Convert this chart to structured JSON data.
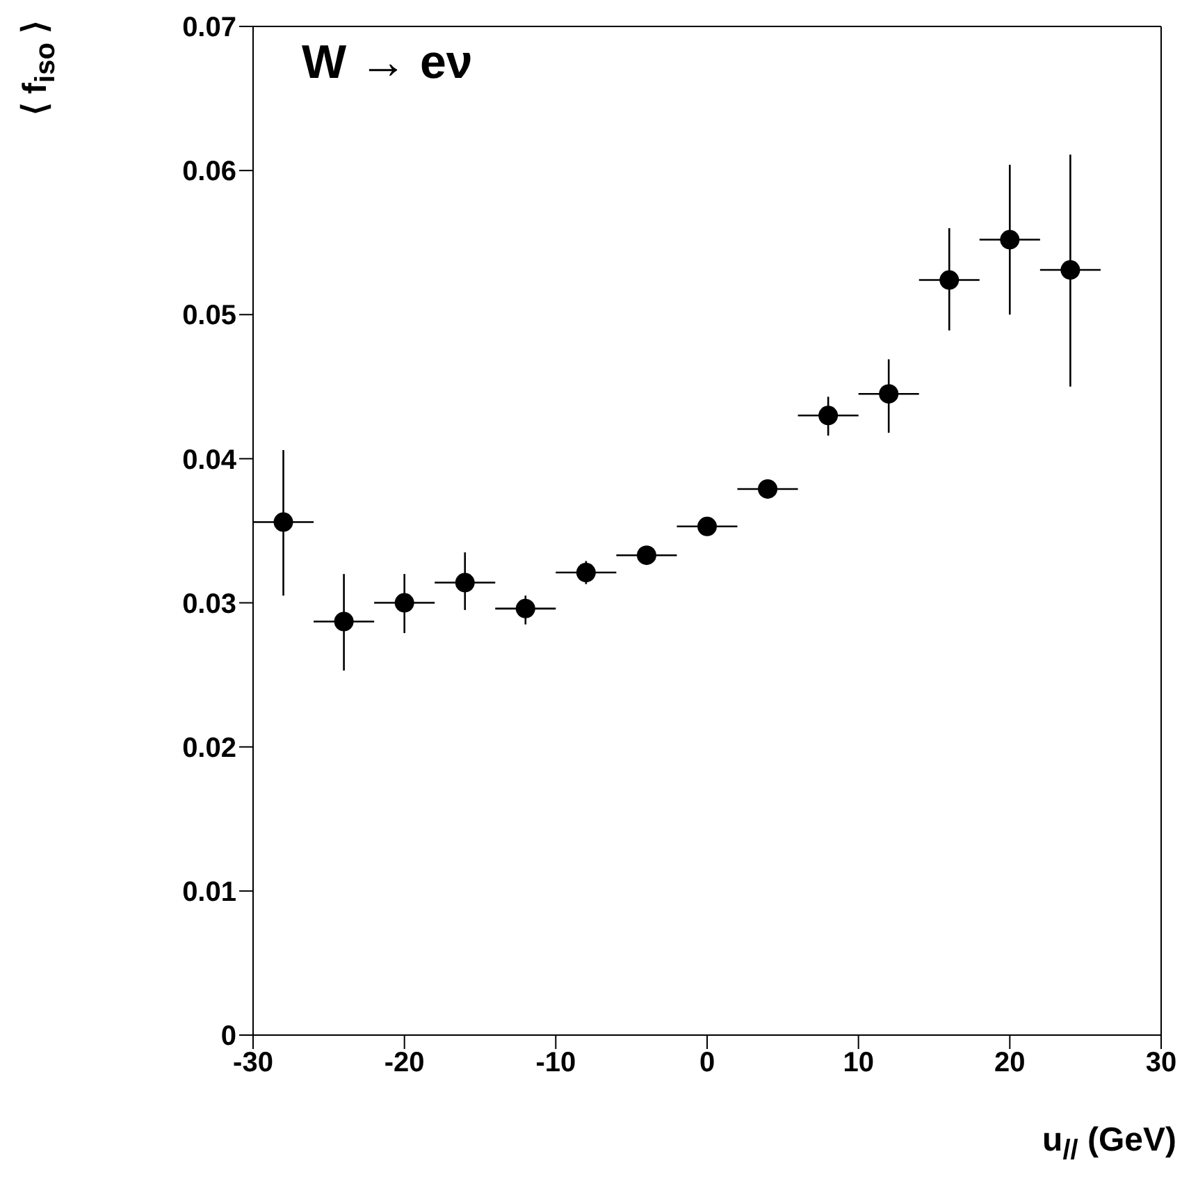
{
  "chart_data": {
    "type": "scatter",
    "xlabel": "u$_{//}$ (GeV)",
    "ylabel": "⟨ f$_{iso}$ ⟩",
    "annotations": [
      "W → eν"
    ],
    "x": [
      -28,
      -24,
      -20,
      -16,
      -12,
      -8,
      -4,
      0,
      4,
      8,
      12,
      16,
      20,
      24
    ],
    "series": [
      {
        "color": "#000000",
        "values": [
          0.0356,
          0.0287,
          0.03,
          0.0314,
          0.0296,
          0.0321,
          0.0333,
          0.0353,
          0.0379,
          0.043,
          0.0445,
          0.0524,
          0.0552,
          0.0531
        ],
        "errors": [
          [
            0.0305,
            0.0406
          ],
          [
            0.0253,
            0.032
          ],
          [
            0.0279,
            0.032
          ],
          [
            0.0295,
            0.0335
          ],
          [
            0.0285,
            0.0305
          ],
          [
            0.0313,
            0.0329
          ],
          [
            0.0328,
            0.0338
          ],
          [
            0.0348,
            0.0358
          ],
          [
            0.0373,
            0.0385
          ],
          [
            0.0416,
            0.0443
          ],
          [
            0.0418,
            0.0469
          ],
          [
            0.0489,
            0.056
          ],
          [
            0.05,
            0.0604
          ],
          [
            0.045,
            0.0611
          ]
        ],
        "xerrors": [
          2,
          2,
          2,
          2,
          2,
          2,
          2,
          2,
          2,
          2,
          2,
          2,
          2,
          2
        ]
      }
    ],
    "xlim": [
      -30,
      30
    ],
    "ylim": [
      0,
      0.07
    ],
    "xticks": [
      -30,
      -20,
      -10,
      0,
      10,
      20,
      30
    ],
    "yticks": [
      "0",
      0.01,
      0.02,
      0.03,
      0.04,
      0.05,
      0.06,
      0.07
    ],
    "marker": "circle"
  }
}
